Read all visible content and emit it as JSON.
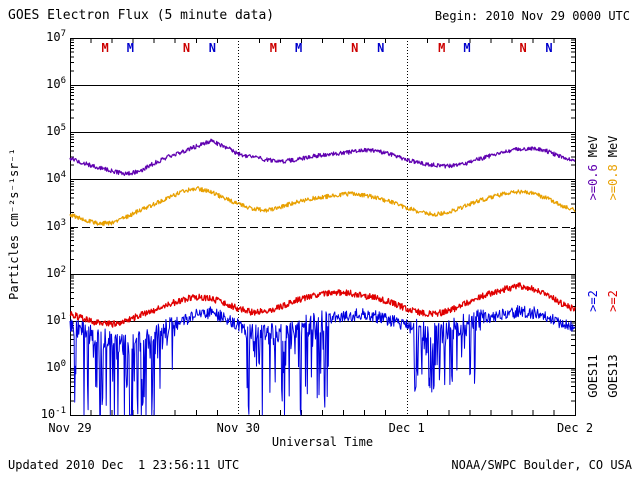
{
  "page": {
    "begin": "Begin: 2010 Nov 29 0000 UTC",
    "updated": "Updated 2010 Dec  1 23:56:11 UTC",
    "credit": "NOAA/SWPC Boulder, CO USA"
  },
  "legend": {
    "goes11": {
      "sat": "GOES11",
      "e2": ">=2",
      "e06": ">=0.6",
      "mev": "MeV"
    },
    "goes13": {
      "sat": "GOES13",
      "e2": ">=2",
      "e08": ">=0.8",
      "mev": "MeV"
    }
  },
  "chart_data": {
    "type": "line",
    "title": "GOES Electron Flux (5 minute data)",
    "xlabel": "Universal Time",
    "ylabel": "Particles cm⁻²s⁻¹sr⁻¹",
    "y_scale": "log10",
    "y_range": [
      0.1,
      10000000.0
    ],
    "x_range": [
      0,
      72
    ],
    "x_unit": "hours since 2010 Nov 29 0000 UTC",
    "grid": true,
    "legend_position": "right",
    "y_ticks": {
      "base": "10",
      "exponents": [
        7,
        6,
        5,
        4,
        3,
        2,
        1,
        0,
        -1
      ]
    },
    "x_day_labels": [
      {
        "label": "Nov 29",
        "hour": 0
      },
      {
        "label": "Nov 30",
        "hour": 24
      },
      {
        "label": "Dec 1",
        "hour": 48
      },
      {
        "label": "Dec 2",
        "hour": 72
      }
    ],
    "threshold": {
      "value": 1000,
      "style": "dashed"
    },
    "event_markers": [
      {
        "label": "M",
        "color": "#cc0000",
        "hour": 5.0
      },
      {
        "label": "M",
        "color": "#0000cc",
        "hour": 8.6
      },
      {
        "label": "N",
        "color": "#cc0000",
        "hour": 16.6
      },
      {
        "label": "N",
        "color": "#0000cc",
        "hour": 20.3
      },
      {
        "label": "M",
        "color": "#cc0000",
        "hour": 29.0
      },
      {
        "label": "M",
        "color": "#0000cc",
        "hour": 32.6
      },
      {
        "label": "N",
        "color": "#cc0000",
        "hour": 40.6
      },
      {
        "label": "N",
        "color": "#0000cc",
        "hour": 44.3
      },
      {
        "label": "M",
        "color": "#cc0000",
        "hour": 53.0
      },
      {
        "label": "M",
        "color": "#0000cc",
        "hour": 56.6
      },
      {
        "label": "N",
        "color": "#cc0000",
        "hour": 64.6
      },
      {
        "label": "N",
        "color": "#0000cc",
        "hour": 68.3
      }
    ],
    "x_hours": [
      0,
      2,
      4,
      6,
      8,
      10,
      12,
      14,
      16,
      18,
      20,
      22,
      24,
      26,
      28,
      30,
      32,
      34,
      36,
      38,
      40,
      42,
      44,
      46,
      48,
      50,
      52,
      54,
      56,
      58,
      60,
      62,
      64,
      66,
      68,
      70,
      72
    ],
    "series": [
      {
        "name": "GOES11 >=0.6 MeV",
        "color": "#5f00b0",
        "noise": 0.03,
        "stroke_width": 1.2,
        "values": [
          28000,
          22000,
          18000,
          15000,
          13000,
          15000,
          22000,
          30000,
          38000,
          50000,
          65000,
          50000,
          35000,
          30000,
          26000,
          24000,
          26000,
          30000,
          33000,
          35000,
          38000,
          42000,
          40000,
          33000,
          26000,
          22000,
          20000,
          19000,
          21000,
          26000,
          32000,
          38000,
          44000,
          46000,
          40000,
          30000,
          24000
        ]
      },
      {
        "name": "GOES13 >=0.8 MeV",
        "color": "#e8a000",
        "noise": 0.03,
        "stroke_width": 1.2,
        "values": [
          1800,
          1400,
          1150,
          1200,
          1600,
          2200,
          3000,
          4000,
          5500,
          6500,
          5500,
          4000,
          3000,
          2400,
          2200,
          2600,
          3200,
          3800,
          4200,
          4600,
          5000,
          4600,
          4000,
          3200,
          2500,
          2000,
          1800,
          2000,
          2600,
          3400,
          4200,
          5000,
          5500,
          5000,
          4000,
          2800,
          2200
        ]
      },
      {
        "name": "GOES11 >=2 MeV",
        "color": "#0000e0",
        "noise": 0.09,
        "noise_window": 0.16,
        "stroke_width": 1.0,
        "spike_windows": [
          {
            "from": 0.5,
            "to": 15,
            "prob": 0.33,
            "max_depth": 2.2
          },
          {
            "from": 25,
            "to": 37,
            "prob": 0.3,
            "max_depth": 1.9
          },
          {
            "from": 49,
            "to": 59,
            "prob": 0.28,
            "max_depth": 1.3
          }
        ],
        "values": [
          8,
          6,
          4.5,
          3.5,
          3,
          3.5,
          5,
          7,
          10,
          13,
          15,
          12,
          8,
          6,
          5,
          5,
          6,
          8,
          10,
          12,
          13,
          14,
          12,
          10,
          8,
          6,
          5.5,
          6,
          8,
          10,
          12,
          14,
          16,
          15,
          12,
          9,
          7
        ]
      },
      {
        "name": "GOES13 >=2 MeV",
        "color": "#e00000",
        "noise": 0.045,
        "stroke_width": 1.3,
        "values": [
          14,
          11,
          9,
          8.5,
          10,
          13,
          17,
          22,
          28,
          32,
          30,
          24,
          18,
          15,
          16,
          20,
          26,
          32,
          38,
          40,
          38,
          34,
          30,
          24,
          18,
          15,
          14,
          16,
          22,
          30,
          38,
          47,
          55,
          48,
          36,
          24,
          17
        ]
      }
    ]
  }
}
